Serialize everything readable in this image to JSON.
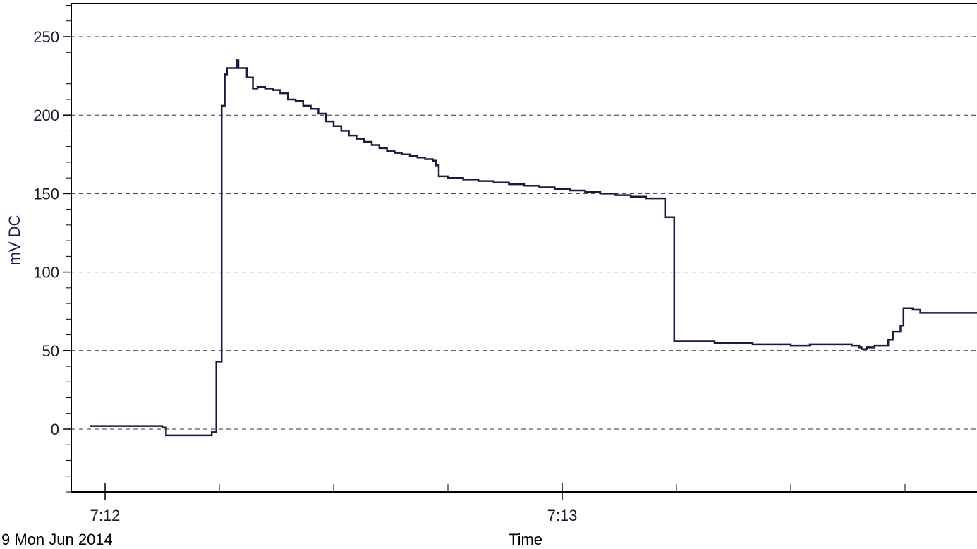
{
  "chart_data": {
    "type": "line",
    "title": "",
    "xlabel": "Time",
    "ylabel": "mV DC",
    "date_label": "9 Mon Jun 2014",
    "y_range": [
      -40,
      270
    ],
    "y_ticks": [
      0,
      50,
      100,
      150,
      200,
      250
    ],
    "x_range_seconds": [
      "7:11:55",
      "7:13:50"
    ],
    "x_tick_labels": [
      {
        "label": "7:12",
        "time": "7:12:00"
      },
      {
        "label": "7:13",
        "time": "7:13:00"
      }
    ],
    "x_minor_ticks": [
      "7:12:00",
      "7:12:15",
      "7:12:30",
      "7:12:45",
      "7:13:00",
      "7:13:15",
      "7:13:30",
      "7:13:45"
    ],
    "grid": "horizontal dashed",
    "line_color": "#1a1a3e",
    "series": [
      {
        "points": [
          [
            "7:11:58",
            2
          ],
          [
            "7:12:07",
            2
          ],
          [
            "7:12:07.5",
            1
          ],
          [
            "7:12:08",
            -4
          ],
          [
            "7:12:13",
            -4
          ],
          [
            "7:12:14",
            -2
          ],
          [
            "7:12:14.6",
            43
          ],
          [
            "7:12:15.3",
            206
          ],
          [
            "7:12:15.7",
            226
          ],
          [
            "7:12:16",
            230
          ],
          [
            "7:12:17",
            230
          ],
          [
            "7:12:17.3",
            235
          ],
          [
            "7:12:17.5",
            230
          ],
          [
            "7:12:18",
            230
          ],
          [
            "7:12:18.6",
            224
          ],
          [
            "7:12:19.4",
            217
          ],
          [
            "7:12:20",
            218
          ],
          [
            "7:12:21",
            217
          ],
          [
            "7:12:22",
            216
          ],
          [
            "7:12:23",
            214
          ],
          [
            "7:12:24",
            210
          ],
          [
            "7:12:25",
            209
          ],
          [
            "7:12:26",
            206
          ],
          [
            "7:12:27",
            204
          ],
          [
            "7:12:28",
            201
          ],
          [
            "7:12:29",
            196
          ],
          [
            "7:12:30",
            193
          ],
          [
            "7:12:31",
            190
          ],
          [
            "7:12:32",
            187
          ],
          [
            "7:12:33",
            185
          ],
          [
            "7:12:34",
            183
          ],
          [
            "7:12:35",
            181
          ],
          [
            "7:12:36",
            179
          ],
          [
            "7:12:37",
            177
          ],
          [
            "7:12:38",
            176
          ],
          [
            "7:12:39",
            175
          ],
          [
            "7:12:40",
            174
          ],
          [
            "7:12:41",
            173
          ],
          [
            "7:12:42",
            172
          ],
          [
            "7:12:43",
            171
          ],
          [
            "7:12:43.4",
            168
          ],
          [
            "7:12:43.8",
            161
          ],
          [
            "7:12:45",
            160
          ],
          [
            "7:12:47",
            159
          ],
          [
            "7:12:49",
            158
          ],
          [
            "7:12:51",
            157
          ],
          [
            "7:12:53",
            156
          ],
          [
            "7:12:55",
            155
          ],
          [
            "7:12:57",
            154
          ],
          [
            "7:12:59",
            153
          ],
          [
            "7:13:01",
            152
          ],
          [
            "7:13:03",
            151
          ],
          [
            "7:13:05",
            150
          ],
          [
            "7:13:07",
            149
          ],
          [
            "7:13:09",
            148
          ],
          [
            "7:13:10",
            148
          ],
          [
            "7:13:11",
            147
          ],
          [
            "7:13:13",
            147
          ],
          [
            "7:13:13.5",
            135
          ],
          [
            "7:13:14.2",
            135
          ],
          [
            "7:13:14.7",
            56
          ],
          [
            "7:13:20",
            55
          ],
          [
            "7:13:25",
            54
          ],
          [
            "7:13:30",
            53
          ],
          [
            "7:13:32",
            53
          ],
          [
            "7:13:32.5",
            54
          ],
          [
            "7:13:35",
            54
          ],
          [
            "7:13:38",
            53
          ],
          [
            "7:13:39",
            52
          ],
          [
            "7:13:39.3",
            51
          ],
          [
            "7:13:40",
            52
          ],
          [
            "7:13:41",
            53
          ],
          [
            "7:13:42",
            53
          ],
          [
            "7:13:42.8",
            57
          ],
          [
            "7:13:43.4",
            62
          ],
          [
            "7:13:44.4",
            66
          ],
          [
            "7:13:44.8",
            77
          ],
          [
            "7:13:46",
            76
          ],
          [
            "7:13:47",
            74
          ],
          [
            "7:13:55",
            73
          ],
          [
            "7:14:05",
            72
          ],
          [
            "7:14:10",
            72
          ]
        ]
      }
    ]
  }
}
